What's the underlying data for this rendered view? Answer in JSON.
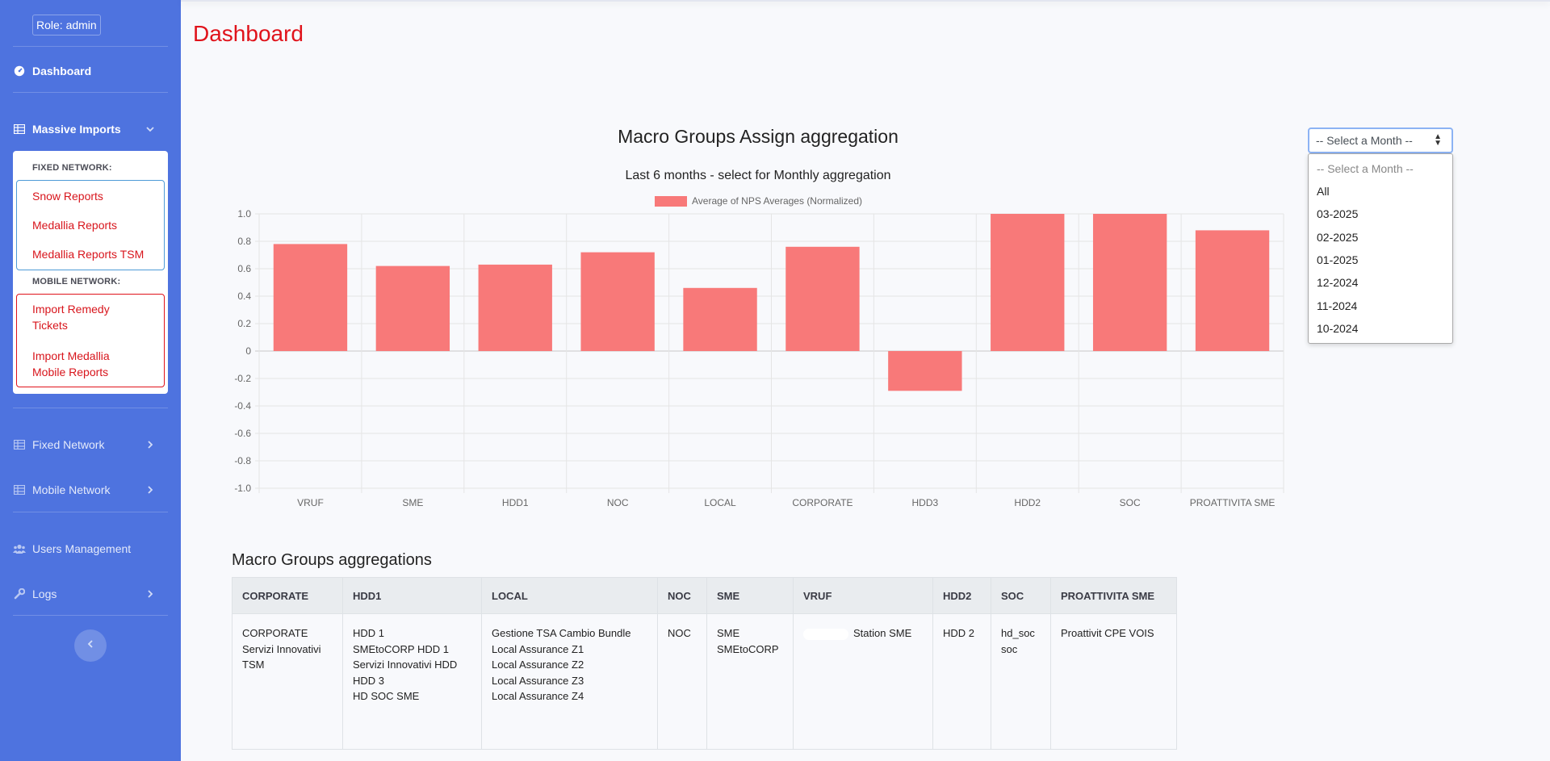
{
  "sidebar": {
    "role": "Role: admin",
    "dashboard": "Dashboard",
    "massive_imports": "Massive Imports",
    "fixed_network_header": "FIXED NETWORK:",
    "mobile_network_header": "MOBILE NETWORK:",
    "snow_reports": "Snow Reports",
    "medallia_reports": "Medallia Reports",
    "medallia_reports_tsm": "Medallia Reports TSM",
    "import_remedy_line1": "Import Remedy",
    "import_remedy_line2": "Tickets",
    "import_medallia_mobile_line1": "Import Medallia",
    "import_medallia_mobile_line2": "Mobile Reports",
    "fixed_network": "Fixed Network",
    "mobile_network": "Mobile Network",
    "users_management": "Users Management",
    "logs": "Logs"
  },
  "page": {
    "title": "Dashboard"
  },
  "chart": {
    "title": "Macro Groups Assign aggregation",
    "subtitle": "Last 6 months - select for Monthly aggregation",
    "legend": "Average of NPS Averages (Normalized)"
  },
  "chart_data": {
    "type": "bar",
    "title": "Macro Groups Assign aggregation",
    "subtitle": "Last 6 months - select for Monthly aggregation",
    "categories": [
      "VRUF",
      "SME",
      "HDD1",
      "NOC",
      "LOCAL",
      "CORPORATE",
      "HDD3",
      "HDD2",
      "SOC",
      "PROATTIVITA SME"
    ],
    "series": [
      {
        "name": "Average of NPS Averages (Normalized)",
        "values": [
          0.78,
          0.62,
          0.63,
          0.72,
          0.46,
          0.76,
          -0.29,
          1.0,
          1.0,
          0.88
        ]
      }
    ],
    "ylim": [
      -1.0,
      1.0
    ],
    "yticks": [
      "1.0",
      "0.8",
      "0.6",
      "0.4",
      "0.2",
      "0",
      "-0.2",
      "-0.4",
      "-0.6",
      "-0.8",
      "-1.0"
    ],
    "legend_position": "top",
    "grid": true,
    "bar_color": "#f87979"
  },
  "month_select": {
    "selected": "-- Select a Month --",
    "options": [
      "-- Select a Month --",
      "All",
      "03-2025",
      "02-2025",
      "01-2025",
      "12-2024",
      "11-2024",
      "10-2024"
    ]
  },
  "table": {
    "title": "Macro Groups aggregations",
    "headers": [
      "CORPORATE",
      "HDD1",
      "LOCAL",
      "NOC",
      "SME",
      "VRUF",
      "HDD2",
      "SOC",
      "PROATTIVITA SME"
    ],
    "cells": [
      [
        "CORPORATE",
        "Servizi Innovativi",
        "TSM"
      ],
      [
        "HDD 1",
        "SMEtoCORP HDD 1",
        "Servizi Innovativi HDD",
        "HDD 3",
        "HD SOC SME"
      ],
      [
        "Gestione TSA Cambio Bundle",
        "Local Assurance Z1",
        "Local Assurance Z2",
        "Local Assurance Z3",
        "Local Assurance Z4"
      ],
      [
        "NOC"
      ],
      [
        "SME",
        "SMEtoCORP"
      ],
      [
        "Station SME"
      ],
      [
        "HDD 2"
      ],
      [
        "hd_soc",
        "soc"
      ],
      [
        "Proattivit CPE VOIS"
      ]
    ]
  },
  "colors": {
    "sidebar": "#4e73df",
    "accent_red": "#e0131b",
    "bar": "#f87979"
  }
}
